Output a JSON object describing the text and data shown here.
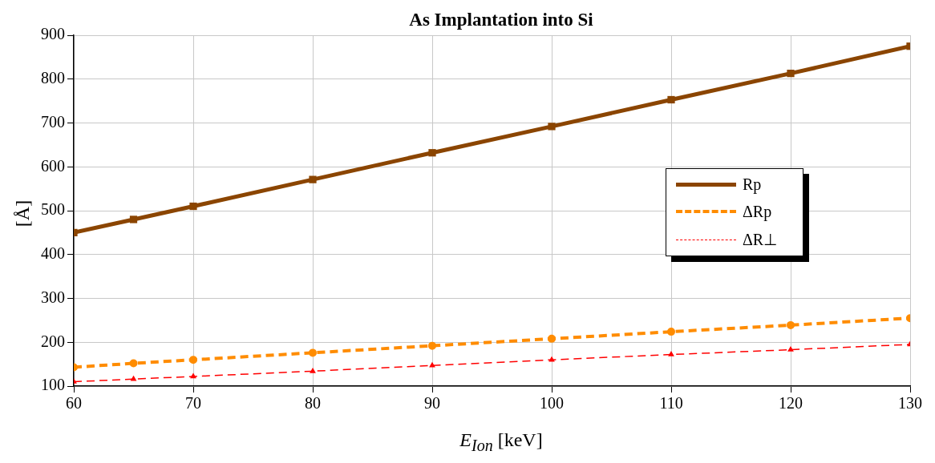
{
  "chart_data": {
    "type": "line",
    "title": "As Implantation into Si",
    "xlabel": "E$_{Ion}$ [keV]",
    "ylabel": "[Å]",
    "x": [
      60,
      65,
      70,
      80,
      90,
      100,
      110,
      120,
      130
    ],
    "series": [
      {
        "name": "Rp",
        "color": "#8b4500",
        "values": [
          450,
          480,
          510,
          571,
          632,
          692,
          753,
          813,
          875
        ],
        "marker": "square",
        "line_style": "solid"
      },
      {
        "name": "ΔRp",
        "color": "#ff8c00",
        "values": [
          143,
          152,
          160,
          176,
          192,
          208,
          224,
          239,
          255
        ],
        "marker": "circle",
        "line_style": "dashed"
      },
      {
        "name": "ΔR⊥",
        "color": "#ff0000",
        "values": [
          110,
          116,
          122,
          134,
          147,
          160,
          172,
          183,
          195
        ],
        "marker": "triangle",
        "line_style": "dashed"
      }
    ],
    "xlim": [
      60,
      130
    ],
    "xticks": [
      60,
      70,
      80,
      90,
      100,
      110,
      120,
      130
    ],
    "ylim": [
      100,
      900
    ],
    "yticks": [
      100,
      200,
      300,
      400,
      500,
      600,
      700,
      800,
      900
    ],
    "grid": true,
    "legend": "right"
  }
}
